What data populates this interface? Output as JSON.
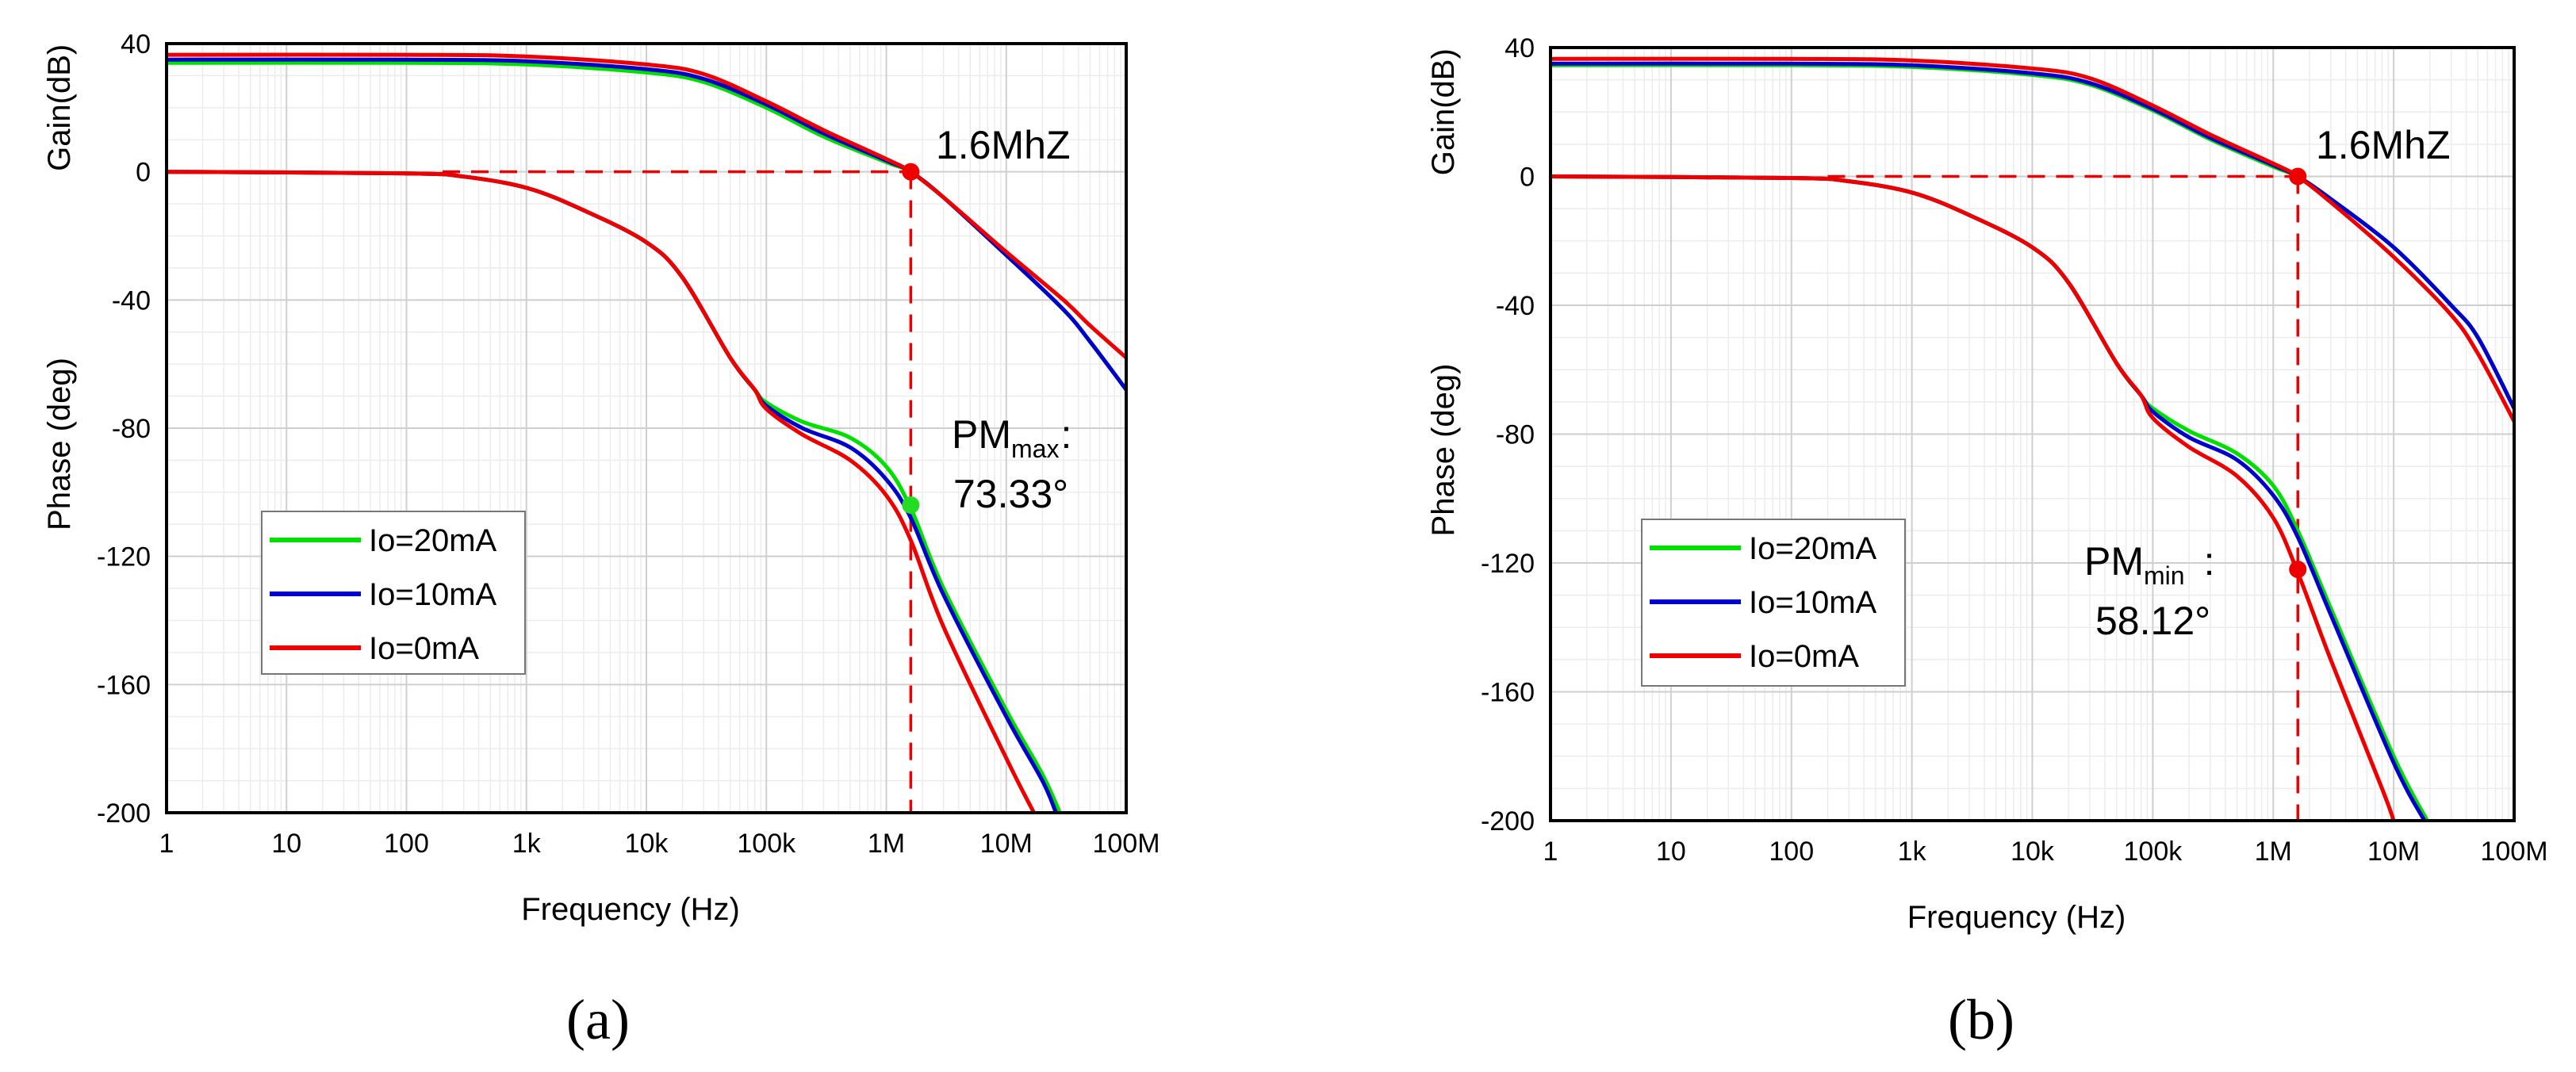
{
  "colors": {
    "io20": "#00e000",
    "io10": "#0000cc",
    "io0": "#ee0000",
    "marker": "#ee0000",
    "marker_green": "#22dd22",
    "grid_major": "#cfcfcf",
    "grid_minor": "#ececec"
  },
  "chart_data": [
    {
      "type": "line",
      "panel_label": "(a)",
      "xlabel": "Frequency (Hz)",
      "xscale": "log",
      "xlim": [
        1,
        100000000
      ],
      "xticks": [
        {
          "value": 1,
          "label": "1"
        },
        {
          "value": 10,
          "label": "10"
        },
        {
          "value": 100,
          "label": "100"
        },
        {
          "value": 1000,
          "label": "1k"
        },
        {
          "value": 10000,
          "label": "10k"
        },
        {
          "value": 100000,
          "label": "100k"
        },
        {
          "value": 1000000,
          "label": "1M"
        },
        {
          "value": 10000000,
          "label": "10M"
        },
        {
          "value": 100000000,
          "label": "100M"
        }
      ],
      "ylim": [
        -200,
        40
      ],
      "yticks": [
        {
          "value": 40,
          "label": "40"
        },
        {
          "value": 0,
          "label": "0"
        },
        {
          "value": -40,
          "label": "-40"
        },
        {
          "value": -80,
          "label": "-80"
        },
        {
          "value": -120,
          "label": "-120"
        },
        {
          "value": -160,
          "label": "-160"
        },
        {
          "value": -200,
          "label": "-200"
        }
      ],
      "ylabel_gain": "Gain(dB)",
      "ylabel_phase": "Phase (deg)",
      "legend": [
        {
          "label": "Io=20mA",
          "color_key": "io20"
        },
        {
          "label": "Io=10mA",
          "color_key": "io10"
        },
        {
          "label": "Io=0mA",
          "color_key": "io0"
        }
      ],
      "series": [
        {
          "name": "Gain Io=20mA",
          "color_key": "io20",
          "x": [
            1,
            100,
            1000,
            10000,
            30000,
            100000,
            300000,
            1000000,
            1600000,
            3000000,
            10000000,
            30000000,
            50000000,
            100000000
          ],
          "y": [
            34,
            34,
            33.5,
            31,
            28,
            20,
            11,
            3,
            0,
            -8,
            -26,
            -43,
            -53,
            -68
          ]
        },
        {
          "name": "Gain Io=10mA",
          "color_key": "io10",
          "x": [
            1,
            100,
            1000,
            10000,
            30000,
            100000,
            300000,
            1000000,
            1600000,
            3000000,
            10000000,
            30000000,
            50000000,
            100000000
          ],
          "y": [
            35,
            35,
            34.5,
            32,
            29,
            21,
            12,
            3.5,
            0,
            -8,
            -26,
            -43,
            -53,
            -68
          ]
        },
        {
          "name": "Gain Io=0mA",
          "color_key": "io0",
          "x": [
            1,
            100,
            1000,
            10000,
            30000,
            100000,
            300000,
            1000000,
            1600000,
            3000000,
            10000000,
            30000000,
            50000000,
            100000000
          ],
          "y": [
            36.5,
            36.5,
            36,
            33.5,
            30.5,
            22,
            13,
            4,
            0,
            -8,
            -25,
            -40,
            -48,
            -58
          ]
        },
        {
          "name": "Phase Io=20mA",
          "color_key": "io20",
          "x": [
            1,
            100,
            300,
            1000,
            3000,
            10000,
            20000,
            50000,
            80000,
            100000,
            200000,
            500000,
            1000000,
            1600000,
            3000000,
            10000000,
            20000000,
            28000000
          ],
          "y": [
            0,
            -0.5,
            -1.5,
            -5,
            -12,
            -22,
            -33,
            -58,
            -68,
            -72,
            -78,
            -83,
            -92,
            -105,
            -130,
            -168,
            -188,
            -200
          ]
        },
        {
          "name": "Phase Io=10mA",
          "color_key": "io10",
          "x": [
            1,
            100,
            300,
            1000,
            3000,
            10000,
            20000,
            50000,
            80000,
            100000,
            200000,
            500000,
            1000000,
            1600000,
            3000000,
            10000000,
            20000000,
            26000000
          ],
          "y": [
            0,
            -0.5,
            -1.5,
            -5,
            -12,
            -22,
            -33,
            -58,
            -68,
            -73,
            -80,
            -86,
            -96,
            -108,
            -132,
            -170,
            -190,
            -200
          ]
        },
        {
          "name": "Phase Io=0mA",
          "color_key": "io0",
          "x": [
            1,
            100,
            300,
            1000,
            3000,
            10000,
            20000,
            50000,
            80000,
            100000,
            200000,
            500000,
            1000000,
            1600000,
            3000000,
            10000000,
            17000000
          ],
          "y": [
            0,
            -0.5,
            -1.5,
            -5,
            -12,
            -22,
            -33,
            -58,
            -68,
            -74,
            -82,
            -90,
            -101,
            -115,
            -142,
            -183,
            -200
          ]
        }
      ],
      "guides": {
        "color_key": "io0",
        "crossover_freq": 1600000,
        "gain_level": 0,
        "h_start_freq": 200,
        "v_bottom": -200
      },
      "markers": [
        {
          "x": 1600000,
          "y": 0,
          "color_key": "marker"
        },
        {
          "x": 1600000,
          "y": -104,
          "color_key": "marker_green"
        }
      ],
      "annotations": {
        "crossover": "1.6MhZ",
        "pm_main": "PM",
        "pm_sub": "max",
        "pm_colon": ":",
        "pm_value": "73.33°"
      }
    },
    {
      "type": "line",
      "panel_label": "(b)",
      "xlabel": "Frequency (Hz)",
      "xscale": "log",
      "xlim": [
        1,
        100000000
      ],
      "xticks": [
        {
          "value": 1,
          "label": "1"
        },
        {
          "value": 10,
          "label": "10"
        },
        {
          "value": 100,
          "label": "100"
        },
        {
          "value": 1000,
          "label": "1k"
        },
        {
          "value": 10000,
          "label": "10k"
        },
        {
          "value": 100000,
          "label": "100k"
        },
        {
          "value": 1000000,
          "label": "1M"
        },
        {
          "value": 10000000,
          "label": "10M"
        },
        {
          "value": 100000000,
          "label": "100M"
        }
      ],
      "ylim": [
        -200,
        40
      ],
      "yticks": [
        {
          "value": 40,
          "label": "40"
        },
        {
          "value": 0,
          "label": "0"
        },
        {
          "value": -40,
          "label": "-40"
        },
        {
          "value": -80,
          "label": "-80"
        },
        {
          "value": -120,
          "label": "-120"
        },
        {
          "value": -160,
          "label": "-160"
        },
        {
          "value": -200,
          "label": "-200"
        }
      ],
      "ylabel_gain": "Gain(dB)",
      "ylabel_phase": "Phase (deg)",
      "legend": [
        {
          "label": "Io=20mA",
          "color_key": "io20"
        },
        {
          "label": "Io=10mA",
          "color_key": "io10"
        },
        {
          "label": "Io=0mA",
          "color_key": "io0"
        }
      ],
      "series": [
        {
          "name": "Gain Io=20mA",
          "color_key": "io20",
          "x": [
            1,
            100,
            1000,
            10000,
            30000,
            100000,
            300000,
            1000000,
            1600000,
            3000000,
            10000000,
            30000000,
            50000000,
            100000000
          ],
          "y": [
            34.5,
            34.5,
            34,
            31.5,
            28.5,
            20.5,
            11.5,
            3,
            0,
            -7,
            -22,
            -40,
            -50,
            -72
          ]
        },
        {
          "name": "Gain Io=10mA",
          "color_key": "io10",
          "x": [
            1,
            100,
            1000,
            10000,
            30000,
            100000,
            300000,
            1000000,
            1600000,
            3000000,
            10000000,
            30000000,
            50000000,
            100000000
          ],
          "y": [
            35,
            35,
            34.5,
            32,
            29,
            21,
            12,
            3.5,
            0,
            -7,
            -22,
            -40,
            -50,
            -72
          ]
        },
        {
          "name": "Gain Io=0mA",
          "color_key": "io0",
          "x": [
            1,
            100,
            1000,
            10000,
            30000,
            100000,
            300000,
            1000000,
            1600000,
            3000000,
            10000000,
            30000000,
            50000000,
            100000000
          ],
          "y": [
            36.5,
            36.5,
            36,
            33.5,
            30.5,
            22,
            13,
            4,
            0,
            -8,
            -25,
            -43,
            -55,
            -76
          ]
        },
        {
          "name": "Phase Io=20mA",
          "color_key": "io20",
          "x": [
            1,
            100,
            300,
            1000,
            3000,
            10000,
            20000,
            50000,
            80000,
            100000,
            200000,
            500000,
            1000000,
            1600000,
            3000000,
            10000000,
            19000000
          ],
          "y": [
            0,
            -0.5,
            -1.5,
            -5,
            -12,
            -22,
            -33,
            -58,
            -68,
            -72,
            -79,
            -86,
            -96,
            -110,
            -134,
            -180,
            -200
          ]
        },
        {
          "name": "Phase Io=10mA",
          "color_key": "io10",
          "x": [
            1,
            100,
            300,
            1000,
            3000,
            10000,
            20000,
            50000,
            80000,
            100000,
            200000,
            500000,
            1000000,
            1600000,
            3000000,
            10000000,
            18000000
          ],
          "y": [
            0,
            -0.5,
            -1.5,
            -5,
            -12,
            -22,
            -33,
            -58,
            -68,
            -73,
            -81,
            -88,
            -99,
            -112,
            -136,
            -182,
            -200
          ]
        },
        {
          "name": "Phase Io=0mA",
          "color_key": "io0",
          "x": [
            1,
            100,
            300,
            1000,
            3000,
            10000,
            20000,
            50000,
            80000,
            100000,
            200000,
            500000,
            1000000,
            1600000,
            3000000,
            8000000,
            10000000
          ],
          "y": [
            0,
            -0.5,
            -1.5,
            -5,
            -12,
            -22,
            -33,
            -58,
            -68,
            -75,
            -84,
            -93,
            -106,
            -123,
            -150,
            -190,
            -200
          ]
        }
      ],
      "guides": {
        "color_key": "io0",
        "crossover_freq": 1600000,
        "gain_level": 0,
        "h_start_freq": 200,
        "v_bottom": -200
      },
      "markers": [
        {
          "x": 1600000,
          "y": 0,
          "color_key": "marker"
        },
        {
          "x": 1600000,
          "y": -122,
          "color_key": "marker"
        }
      ],
      "annotations": {
        "crossover": "1.6MhZ",
        "pm_main": "PM",
        "pm_sub": "min",
        "pm_colon": ":",
        "pm_value": "58.12°"
      }
    }
  ]
}
